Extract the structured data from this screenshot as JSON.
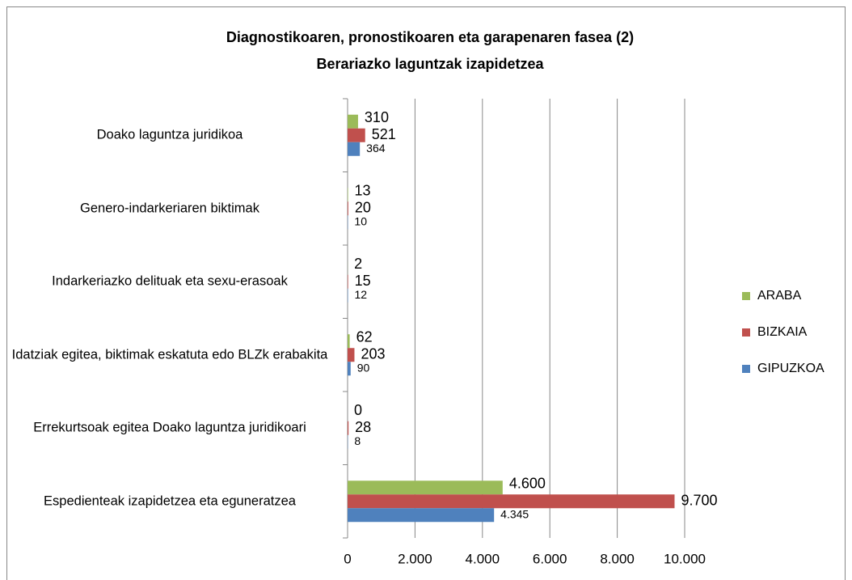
{
  "chart_data": {
    "type": "hbar",
    "title": "Diagnostikoaren, pronostikoaren eta garapenaren fasea (2)",
    "subtitle": "Berariazko laguntzak izapidetzea",
    "categories": [
      "Doako laguntza juridikoa",
      "Genero-indarkeriaren biktimak",
      "Indarkeriazko delituak eta sexu-erasoak",
      "Idatziak egitea, biktimak eskatuta edo BLZk erabakita",
      "Errekurtsoak egitea Doako laguntza juridikoari",
      "Espedienteak izapidetzea eta eguneratzea"
    ],
    "series": [
      {
        "name": "ARABA",
        "color": "#9bbb59",
        "values": [
          310,
          13,
          2,
          62,
          0,
          4600
        ],
        "value_labels": [
          "310",
          "13",
          "2",
          "62",
          "0",
          "4.600"
        ]
      },
      {
        "name": "BIZKAIA",
        "color": "#c0504d",
        "values": [
          521,
          20,
          15,
          203,
          28,
          9700
        ],
        "value_labels": [
          "521",
          "20",
          "15",
          "203",
          "28",
          "9.700"
        ]
      },
      {
        "name": "GIPUZKOA",
        "color": "#4f81bd",
        "values": [
          364,
          10,
          12,
          90,
          8,
          4345
        ],
        "value_labels": [
          "364",
          "10",
          "12",
          "90",
          "8",
          "4.345"
        ]
      }
    ],
    "xlim": [
      0,
      10000
    ],
    "xticks": [
      0,
      {
        "value": 2000,
        "label": "2.000"
      },
      {
        "value": 4000,
        "label": "4.000"
      },
      {
        "value": 6000,
        "label": "6.000"
      },
      {
        "value": 8000,
        "label": "8.000"
      },
      {
        "value": 10000,
        "label": "10.000"
      }
    ],
    "grid": true,
    "legend": "right"
  }
}
